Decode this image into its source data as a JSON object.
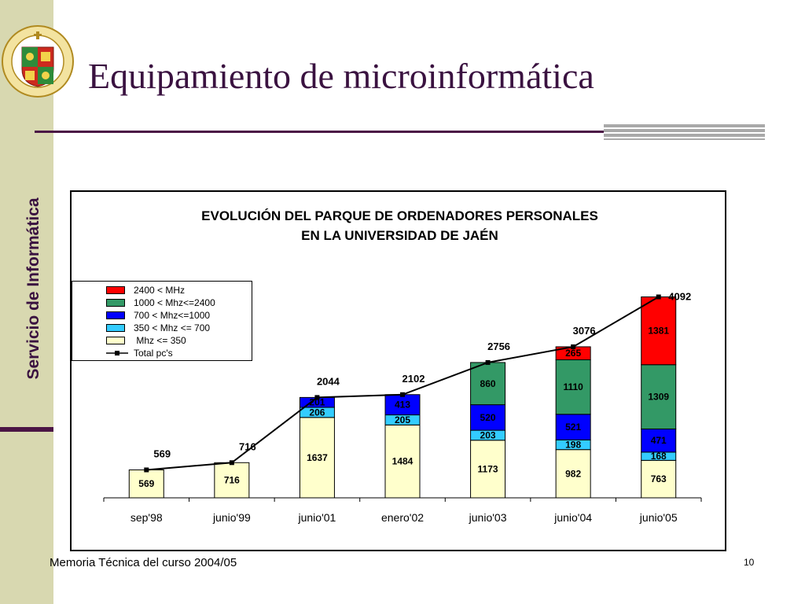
{
  "slide": {
    "title": "Equipamiento de microinformática",
    "sidebar_text": "Servicio de Informática",
    "footer": "Memoria Técnica del curso 2004/05",
    "page_number": "10",
    "logo_text": "VNIVERSITAS GIENNENSIS"
  },
  "chart_data": {
    "type": "bar",
    "stacked": true,
    "title_line1": "EVOLUCIÓN DEL PARQUE DE ORDENADORES PERSONALES",
    "title_line2": "EN LA UNIVERSIDAD DE JAÉN",
    "categories": [
      "sep'98",
      "junio'99",
      "junio'01",
      "enero'02",
      "junio'03",
      "junio'04",
      "junio'05"
    ],
    "series": [
      {
        "name": " Mhz <= 350",
        "color": "#ffffcc",
        "values": [
          569,
          716,
          1637,
          1484,
          1173,
          982,
          763
        ]
      },
      {
        "name": "350 < Mhz <= 700",
        "color": "#33ccff",
        "values": [
          null,
          null,
          206,
          205,
          203,
          198,
          168
        ]
      },
      {
        "name": "700 < Mhz<=1000",
        "color": "#0000ff",
        "values": [
          null,
          null,
          201,
          413,
          520,
          521,
          471
        ]
      },
      {
        "name": "1000 < Mhz<=2400",
        "color": "#339966",
        "values": [
          null,
          null,
          null,
          null,
          860,
          1110,
          1309
        ]
      },
      {
        "name": "2400 < MHz",
        "color": "#ff0000",
        "values": [
          null,
          null,
          null,
          null,
          null,
          265,
          1381
        ]
      }
    ],
    "line": {
      "name": "Total pc's",
      "values": [
        569,
        716,
        2044,
        2102,
        2756,
        3076,
        4092
      ]
    },
    "legend_order": [
      "2400 < MHz",
      "1000 < Mhz<=2400",
      "700 < Mhz<=1000",
      "350 < Mhz <= 700",
      " Mhz <= 350",
      "Total pc's"
    ],
    "legend_position": "left",
    "ylim": [
      0,
      4100
    ],
    "grid": false
  }
}
